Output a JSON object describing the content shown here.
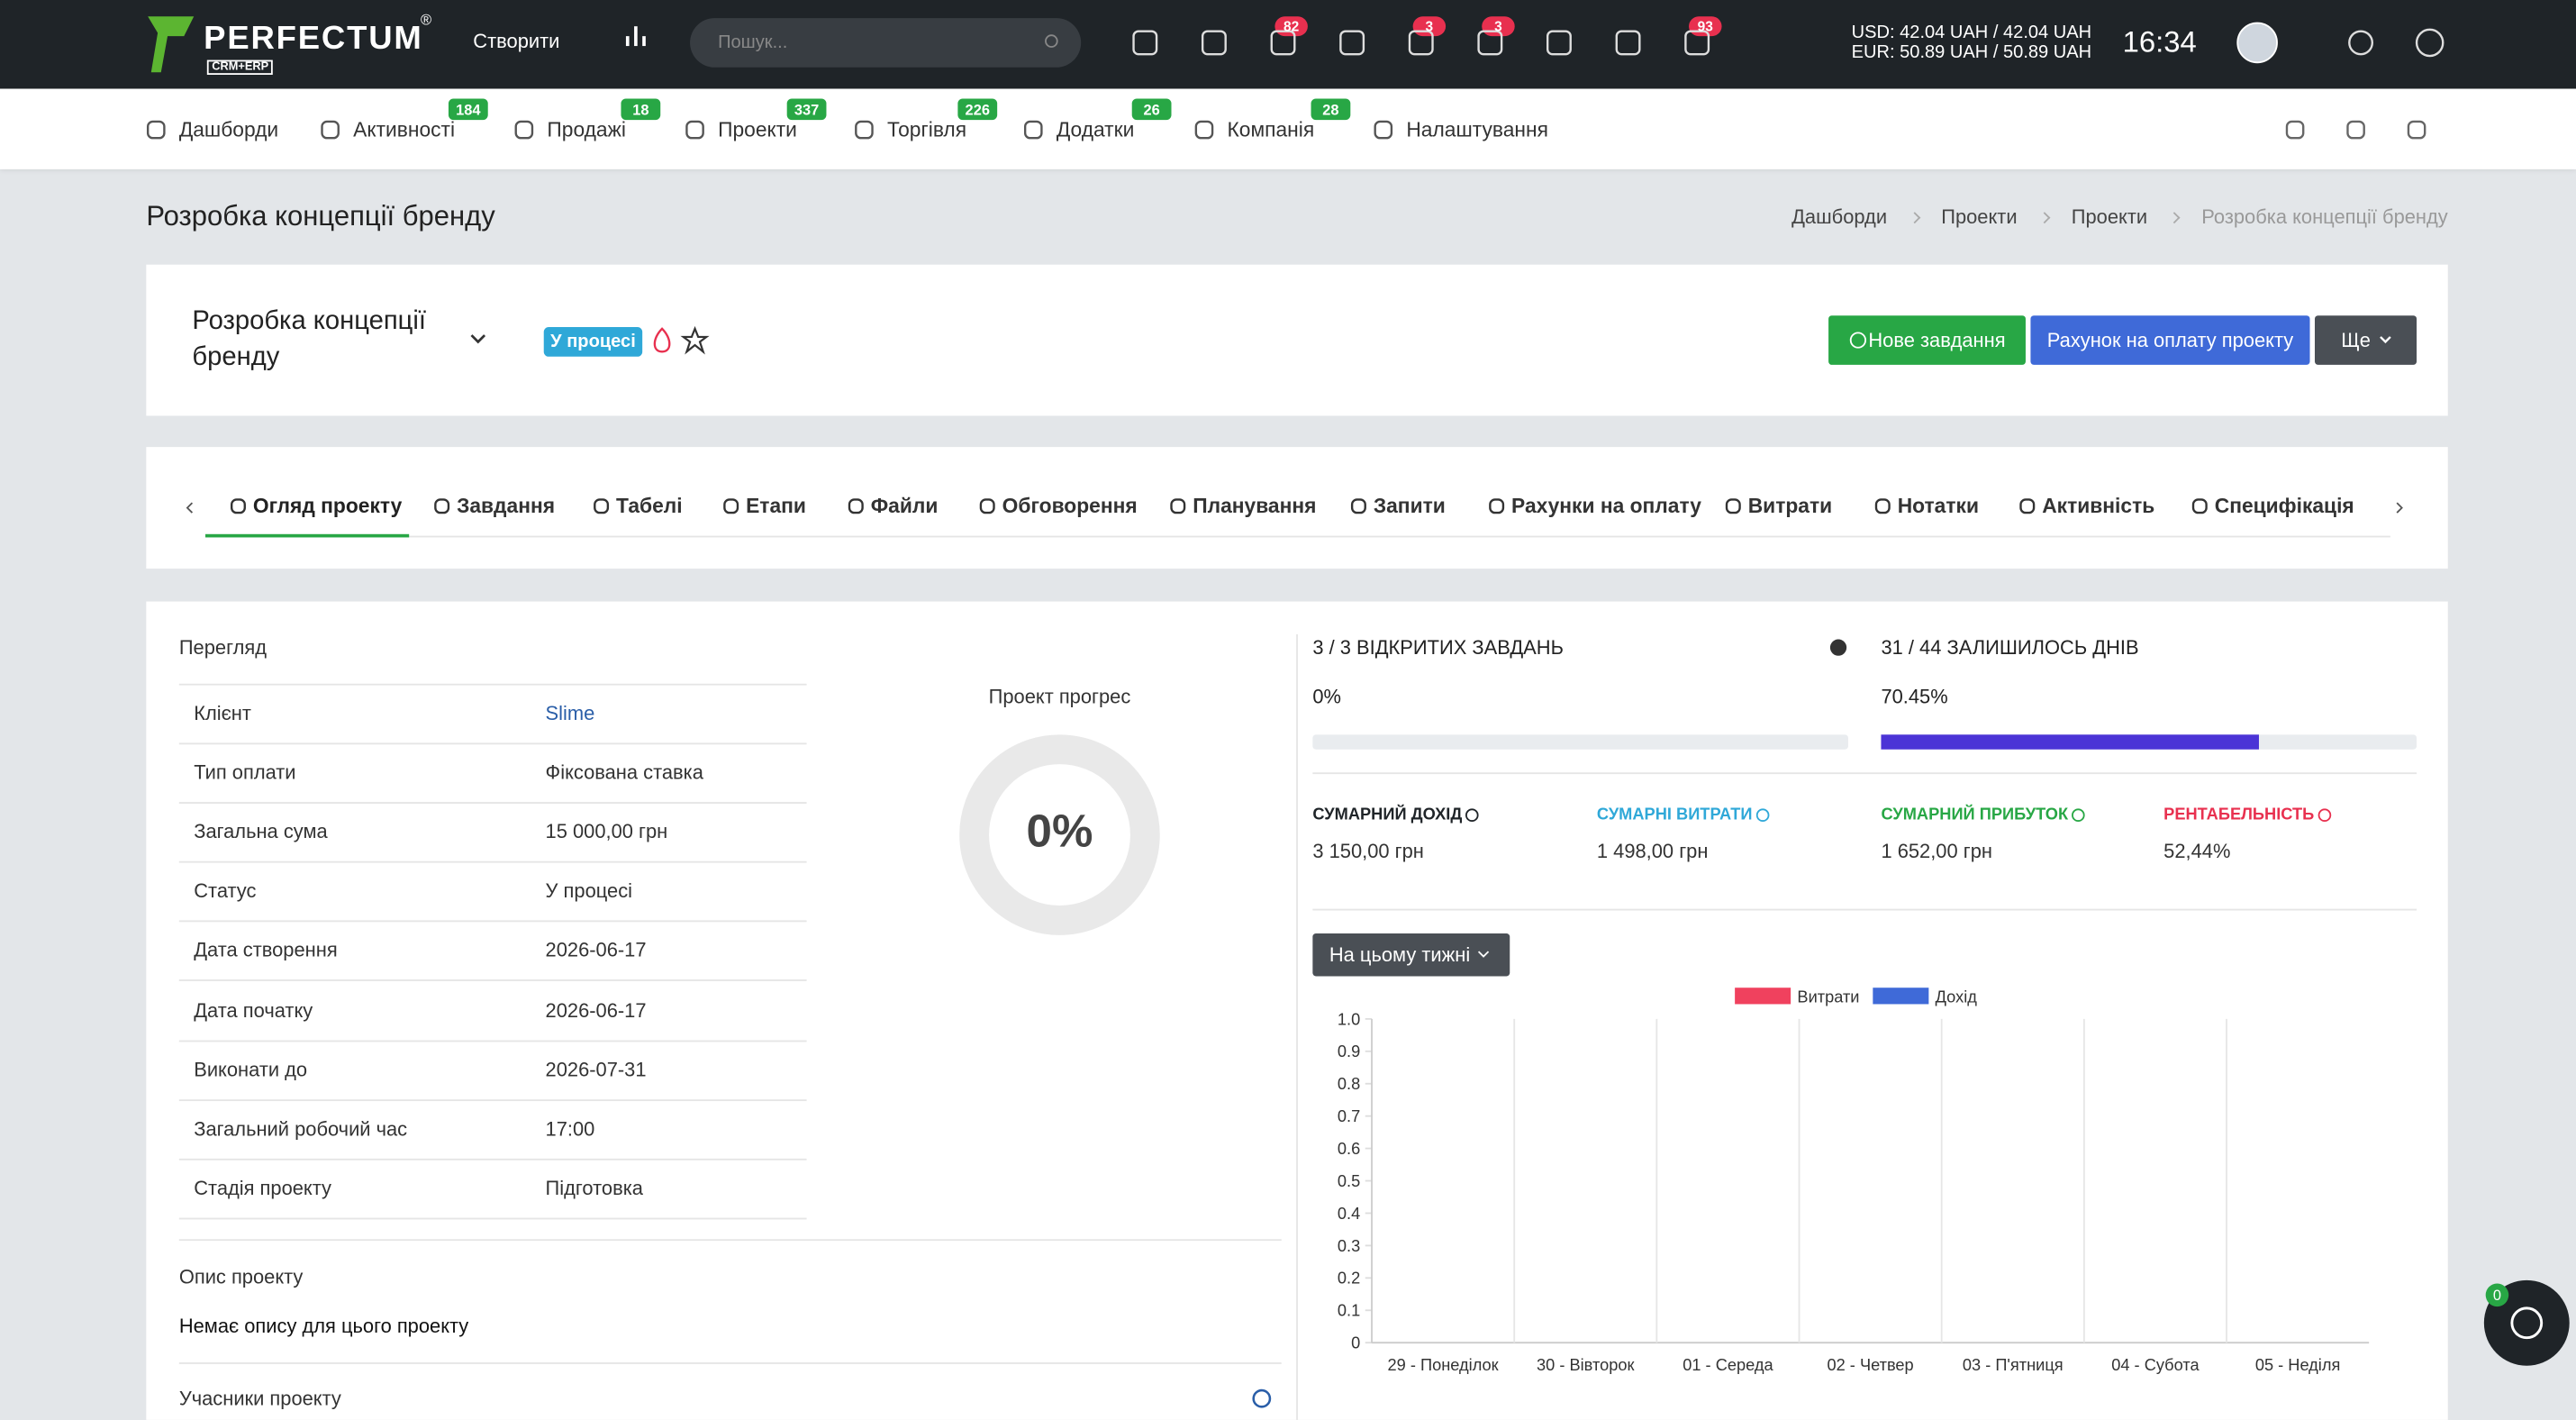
{
  "topbar": {
    "logo": "PERFECTUM",
    "logo_mark": "®",
    "logo_sub": "CRM+ERP",
    "create": "Створити",
    "search_placeholder": "Пошук...",
    "badges": [
      82,
      3,
      3,
      93
    ],
    "currency": [
      "USD: 42.04 UAH / 42.04 UAH",
      "EUR: 50.89 UAH / 50.89 UAH"
    ],
    "time": "16:34"
  },
  "nav": [
    {
      "label": "Дашборди"
    },
    {
      "label": "Активності",
      "badge": 184
    },
    {
      "label": "Продажі",
      "badge": 18
    },
    {
      "label": "Проекти",
      "badge": 337
    },
    {
      "label": "Торгівля",
      "badge": 226
    },
    {
      "label": "Додатки",
      "badge": 26
    },
    {
      "label": "Компанія",
      "badge": 28
    },
    {
      "label": "Налаштування"
    }
  ],
  "page_title": "Розробка концепції бренду",
  "breadcrumbs": [
    "Дашборди",
    "Проекти",
    "Проекти",
    "Розробка концепції бренду"
  ],
  "project": {
    "name": "Розробка концепції бренду",
    "status": "У процесі",
    "buttons": [
      "Нове завдання",
      "Рахунок на оплату проекту",
      "Ще"
    ]
  },
  "tabs": [
    "Огляд проекту",
    "Завдання",
    "Табелі",
    "Етапи",
    "Файли",
    "Обговорення",
    "Планування",
    "Запити",
    "Рахунки на оплату",
    "Витрати",
    "Нотатки",
    "Активність",
    "Специфікація"
  ],
  "overview": {
    "title": "Перегляд",
    "rows": [
      [
        "Клієнт",
        "Slime"
      ],
      [
        "Тип оплати",
        "Фіксована ставка"
      ],
      [
        "Загальна сума",
        "15 000,00 грн"
      ],
      [
        "Статус",
        "У процесі"
      ],
      [
        "Дата створення",
        "2026-06-17"
      ],
      [
        "Дата початку",
        "2026-06-17"
      ],
      [
        "Виконати до",
        "2026-07-31"
      ],
      [
        "Загальний робочий час",
        "17:00"
      ],
      [
        "Стадія проекту",
        "Підготовка"
      ]
    ],
    "progress_title": "Проект прогрес",
    "progress": "0%"
  },
  "stats": {
    "tasks": "3 / 3 ВІДКРИТИХ ЗАВДАНЬ",
    "tasks_percent": "0%",
    "days": "31 / 44 ЗАЛИШИЛОСЬ ДНІВ",
    "days_percent": "70.45%"
  },
  "metrics": [
    {
      "label": "СУМАРНИЙ ДОХІД",
      "value": "3 150,00 грн",
      "color": "#1f2428"
    },
    {
      "label": "СУМАРНІ ВИТРАТИ",
      "value": "1 498,00 грн",
      "color": "#2fa8d8"
    },
    {
      "label": "СУМАРНИЙ ПРИБУТОК",
      "value": "1 652,00 грн",
      "color": "#28a745"
    },
    {
      "label": "РЕНТАБЕЛЬНІСТЬ",
      "value": "52,44%",
      "color": "#e8304f"
    }
  ],
  "period": "На цьому тижні",
  "chart_data": {
    "type": "bar",
    "categories": [
      "29 - Понеділок",
      "30 - Вівторок",
      "01 - Середа",
      "02 - Четвер",
      "03 - П'ятниця",
      "04 - Субота",
      "05 - Неділя"
    ],
    "series": [
      {
        "name": "Витрати",
        "color": "#f0415e",
        "values": [
          0,
          0,
          0,
          0,
          0,
          0,
          0
        ]
      },
      {
        "name": "Дохід",
        "color": "#3f6ad8",
        "values": [
          0,
          0,
          0,
          0,
          0,
          0,
          0
        ]
      }
    ],
    "ylim": [
      0,
      1
    ],
    "yticks": [
      0,
      0.1,
      0.2,
      0.3,
      0.4,
      0.5,
      0.6,
      0.7,
      0.8,
      0.9,
      {
        "value": 1,
        "label": "1.0"
      }
    ],
    "grid": true
  },
  "description": {
    "title": "Опис проекту",
    "text": "Немає опису для цього проекту"
  },
  "members_title": "Учасники проекту",
  "chat_badge": 0
}
